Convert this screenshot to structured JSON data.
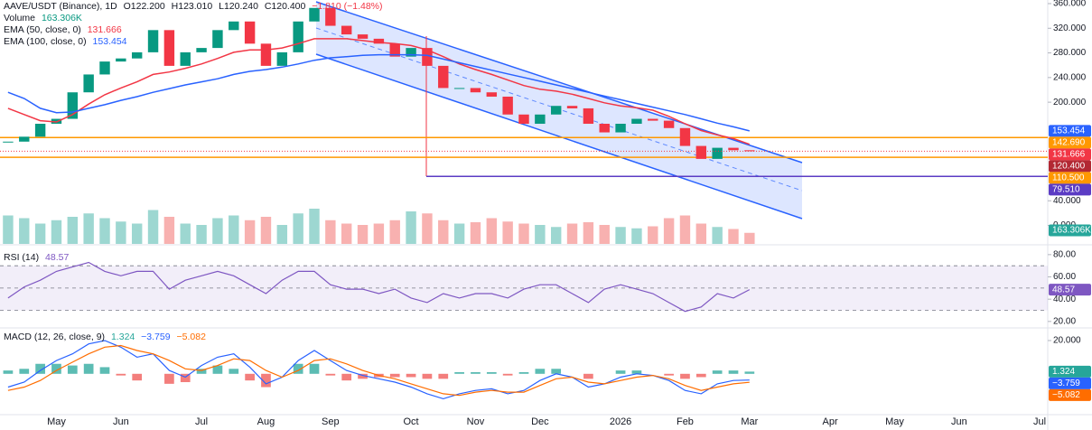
{
  "header": {
    "symbol": "AAVE/USDT (Binance), 1D",
    "ohlc": [
      "O122.200",
      "H123.010",
      "L120.240",
      "C120.400"
    ],
    "change": "−1.810 (−1.48%)"
  },
  "chart_data": [
    {
      "type": "candlestick",
      "categories": [
        null,
        null,
        null,
        "May",
        null,
        null,
        null,
        "Jun",
        null,
        null,
        null,
        null,
        "Jul",
        null,
        null,
        null,
        "Aug",
        null,
        null,
        null,
        "Sep",
        null,
        null,
        null,
        null,
        "Oct",
        null,
        null,
        null,
        "Nov",
        null,
        null,
        null,
        "Dec",
        null,
        null,
        null,
        null,
        "2026",
        null,
        null,
        null,
        "Feb",
        null,
        null,
        null,
        "Mar",
        null,
        null,
        null,
        null,
        "Apr",
        null,
        null,
        null,
        "May",
        null,
        null,
        null,
        "Jun",
        null,
        null,
        null,
        null,
        "Jul"
      ],
      "values": [
        136,
        144,
        165,
        173,
        216,
        245,
        266,
        271,
        281,
        317,
        259,
        281,
        288,
        317,
        331,
        295,
        259,
        281,
        331,
        353,
        324,
        310,
        303,
        295,
        274,
        288,
        259,
        223,
        223,
        216,
        209,
        180,
        165,
        180,
        194,
        190,
        165,
        151,
        165,
        173,
        170,
        158,
        129,
        108,
        126,
        122,
        120.4,
        null,
        null,
        null,
        null,
        null,
        null,
        null,
        null,
        null,
        null,
        null,
        null,
        null,
        null,
        null,
        null,
        null,
        null
      ],
      "last_label": "120.400",
      "color_up": "#089981",
      "color_down": "#f23645",
      "series": [
        {
          "name": "EMA (50, close, 0)",
          "color": "#f23645",
          "last_label": "131.666",
          "values": [
            190,
            180,
            170,
            168,
            180,
            197,
            212,
            223,
            233,
            245,
            249,
            255,
            262,
            271,
            281,
            285,
            285,
            288,
            295,
            303,
            303,
            303,
            300,
            297,
            295,
            292,
            285,
            274,
            262,
            253,
            245,
            236,
            227,
            221,
            218,
            213,
            206,
            199,
            194,
            191,
            187,
            177,
            165,
            154,
            147,
            141,
            131.666,
            null,
            null,
            null,
            null,
            null,
            null,
            null,
            null,
            null,
            null,
            null,
            null,
            null,
            null,
            null,
            null,
            null,
            null
          ]
        },
        {
          "name": "EMA (100, close, 0)",
          "color": "#2962ff",
          "last_label": "153.454",
          "values": [
            216,
            206,
            190,
            183,
            184,
            190,
            196,
            203,
            209,
            216,
            222,
            228,
            233,
            238,
            245,
            250,
            253,
            257,
            262,
            268,
            272,
            274,
            276,
            277,
            277,
            277,
            276,
            270,
            264,
            258,
            252,
            246,
            240,
            234,
            228,
            222,
            216,
            210,
            204,
            198,
            192,
            186,
            180,
            173,
            166,
            160,
            153.454,
            null,
            null,
            null,
            null,
            null,
            null,
            null,
            null,
            null,
            null,
            null,
            null,
            null,
            null,
            null,
            null,
            null,
            null
          ]
        }
      ],
      "levels": [
        {
          "value": 142.69,
          "label": "142.690",
          "color": "#ff9800"
        },
        {
          "value": 110.5,
          "label": "110.500",
          "color": "#ff9800"
        },
        {
          "value": 79.51,
          "label": "79.510",
          "color": "#5b3cc4"
        }
      ],
      "ylim": [
        -30,
        360
      ],
      "yticks": [
        {
          "value": 360,
          "label": "360.000"
        },
        {
          "value": 320,
          "label": "320.000"
        },
        {
          "value": 280,
          "label": "280.000"
        },
        {
          "value": 240,
          "label": "240.000"
        },
        {
          "value": 200,
          "label": "200.000"
        },
        {
          "value": 40,
          "label": "40.000"
        },
        {
          "value": 0,
          "label": "0.000"
        }
      ]
    },
    {
      "type": "bar",
      "name": "Volume",
      "last_label": "163.306K",
      "color": "#26a69a",
      "values": [
        420000,
        380000,
        300000,
        350000,
        400000,
        450000,
        380000,
        330000,
        300000,
        500000,
        400000,
        300000,
        280000,
        380000,
        420000,
        350000,
        400000,
        280000,
        450000,
        520000,
        350000,
        300000,
        280000,
        300000,
        350000,
        480000,
        450000,
        350000,
        300000,
        320000,
        380000,
        330000,
        300000,
        280000,
        250000,
        300000,
        320000,
        280000,
        250000,
        230000,
        260000,
        380000,
        420000,
        300000,
        250000,
        220000,
        163306,
        null,
        null,
        null,
        null,
        null,
        null,
        null,
        null,
        null,
        null,
        null,
        null,
        null,
        null,
        null,
        null,
        null,
        null
      ],
      "ylim": [
        0,
        1000000
      ]
    },
    {
      "type": "line",
      "title": "RSI (14)",
      "color": "#7e57c2",
      "last_label": "48.57",
      "values": [
        41,
        51,
        57,
        65,
        69,
        73,
        65,
        61,
        65,
        65,
        49,
        57,
        61,
        65,
        61,
        53,
        45,
        57,
        65,
        65,
        53,
        49,
        49,
        45,
        49,
        41,
        37,
        45,
        41,
        45,
        45,
        41,
        49,
        53,
        53,
        45,
        37,
        49,
        53,
        49,
        45,
        37,
        29,
        33,
        45,
        41,
        48.57,
        null,
        null,
        null,
        null,
        null,
        null,
        null,
        null,
        null,
        null,
        null,
        null,
        null,
        null,
        null,
        null,
        null,
        null
      ],
      "bands": [
        70,
        50,
        30
      ],
      "ylim": [
        15,
        88
      ],
      "yticks": [
        {
          "value": 80,
          "label": "80.00"
        },
        {
          "value": 60,
          "label": "60.00"
        },
        {
          "value": 40,
          "label": "40.00"
        },
        {
          "value": 20,
          "label": "20.00"
        }
      ]
    },
    {
      "type": "macd",
      "title": "MACD (12, 26, close, 9)",
      "histogram": {
        "last_label": "1.324",
        "color_up": "#26a69a",
        "color_down": "#ef5350",
        "values": [
          2,
          3,
          6,
          6,
          5,
          6,
          4,
          -1,
          -4,
          0,
          -6,
          -5,
          3,
          5,
          3,
          -4,
          -8,
          0,
          6,
          6,
          -1,
          -4,
          -3,
          -2,
          -2,
          -2,
          -3,
          -3,
          1,
          1,
          1,
          -1,
          1,
          3,
          3,
          0,
          -3,
          0,
          2,
          2,
          0,
          -1,
          -3,
          -2,
          2,
          2,
          1.324,
          null,
          null,
          null,
          null,
          null,
          null,
          null,
          null,
          null,
          null,
          null,
          null,
          null,
          null,
          null,
          null,
          null,
          null
        ]
      },
      "macd": {
        "color": "#2962ff",
        "last_label": "−3.759",
        "values": [
          -8,
          -5,
          2,
          8,
          12,
          18,
          20,
          16,
          10,
          12,
          2,
          -2,
          5,
          10,
          12,
          4,
          -6,
          -2,
          8,
          14,
          8,
          2,
          -1,
          -3,
          -5,
          -8,
          -12,
          -15,
          -12,
          -10,
          -9,
          -12,
          -10,
          -4,
          0,
          -2,
          -8,
          -6,
          -2,
          0,
          -1,
          -4,
          -10,
          -12,
          -6,
          -4,
          -3.759,
          null,
          null,
          null,
          null,
          null,
          null,
          null,
          null,
          null,
          null,
          null,
          null,
          null,
          null,
          null,
          null,
          null,
          null
        ]
      },
      "signal": {
        "color": "#ff6d00",
        "last_label": "−5.082",
        "values": [
          -10,
          -8,
          -4,
          2,
          7,
          12,
          16,
          17,
          14,
          12,
          8,
          3,
          2,
          5,
          9,
          8,
          2,
          -2,
          2,
          8,
          9,
          6,
          2,
          -1,
          -3,
          -6,
          -9,
          -12,
          -13,
          -11,
          -10,
          -11,
          -11,
          -7,
          -3,
          -2,
          -5,
          -6,
          -4,
          -2,
          -1,
          -3,
          -7,
          -10,
          -8,
          -6,
          -5.082,
          null,
          null,
          null,
          null,
          null,
          null,
          null,
          null,
          null,
          null,
          null,
          null,
          null,
          null,
          null,
          null,
          null,
          null
        ]
      },
      "ylim": [
        -24,
        26.5
      ],
      "yticks": [
        {
          "value": 20,
          "label": "20.000"
        }
      ]
    }
  ]
}
